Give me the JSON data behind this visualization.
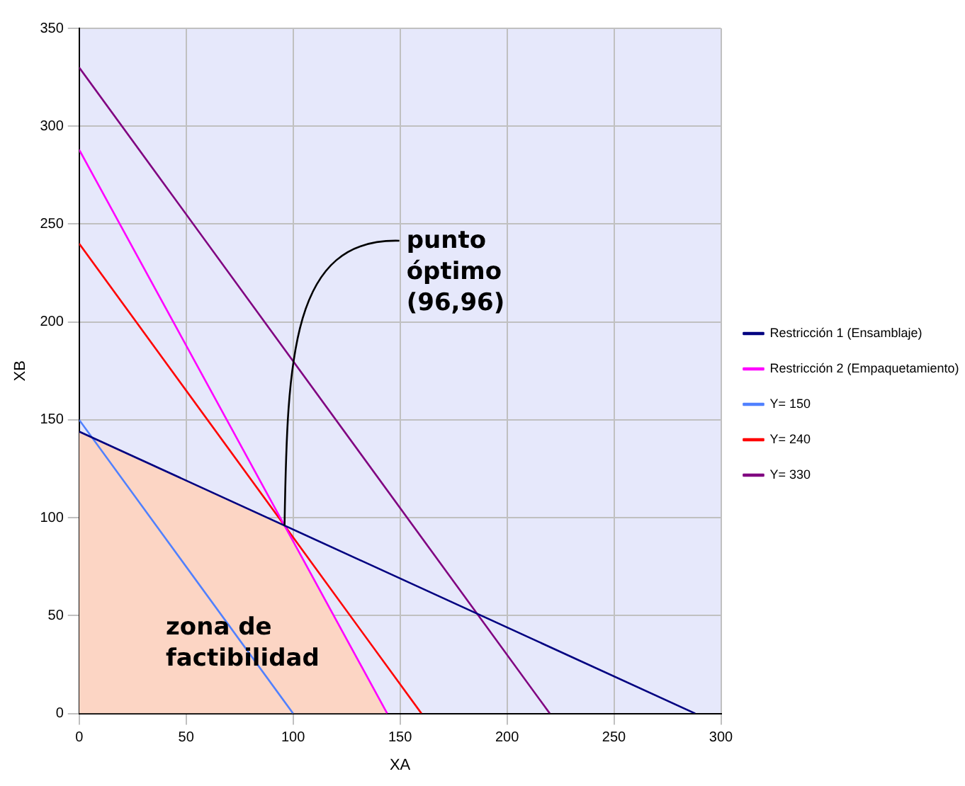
{
  "chart_data": {
    "type": "line",
    "xlabel": "XA",
    "ylabel": "XB",
    "xlim": [
      0,
      300
    ],
    "xticks": [
      0,
      50,
      100,
      150,
      200,
      250,
      300
    ],
    "ylim": [
      0,
      350
    ],
    "yticks": [
      0,
      50,
      100,
      150,
      200,
      250,
      300,
      350
    ],
    "grid": true,
    "legend": "right",
    "marker": "none",
    "line_style": "solid",
    "series": [
      {
        "type": "area",
        "color": "#fcd5c4",
        "x": [
          0,
          0,
          96,
          144
        ],
        "values": [
          0,
          144,
          96,
          0
        ]
      },
      {
        "name": "Restricción 1 (Ensamblaje)",
        "color": "#000080",
        "x": [
          0,
          288
        ],
        "values": [
          144,
          0
        ]
      },
      {
        "name": "Restricción 2 (Empaquetamiento)",
        "color": "#ff00ff",
        "x": [
          0,
          144
        ],
        "values": [
          288,
          0
        ]
      },
      {
        "name": "Y= 150",
        "color": "#5080ff",
        "x": [
          0,
          100
        ],
        "values": [
          150,
          0
        ]
      },
      {
        "name": "Y= 240",
        "color": "#ff0000",
        "x": [
          0,
          160
        ],
        "values": [
          240,
          0
        ]
      },
      {
        "name": "Y= 330",
        "color": "#800080",
        "x": [
          0,
          220
        ],
        "values": [
          330,
          0
        ]
      }
    ],
    "annotations": [
      "zona de factibilidad",
      {
        "text": "punto óptimo (96,96)",
        "x": 96,
        "y": 96
      }
    ]
  }
}
